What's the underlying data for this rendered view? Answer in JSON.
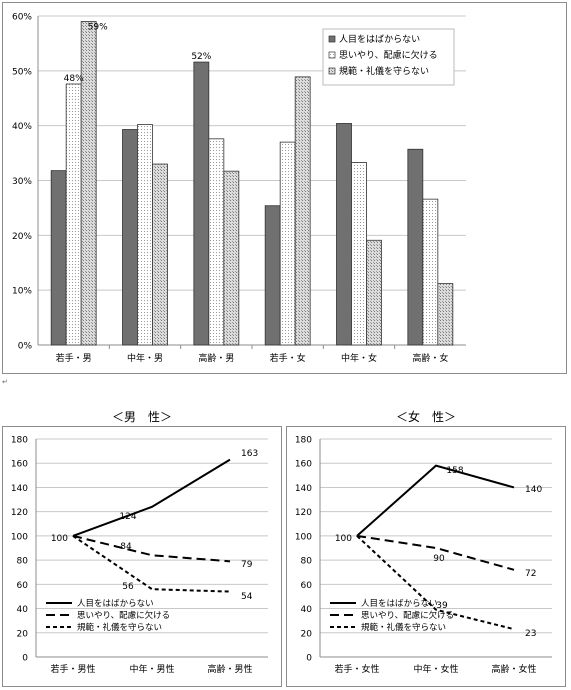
{
  "chart_data": [
    {
      "type": "bar",
      "categories": [
        "若手・男",
        "中年・男",
        "高齢・男",
        "若手・女",
        "中年・女",
        "高齢・女"
      ],
      "series": [
        {
          "name": "人目をはばからない",
          "values": [
            31.8,
            39.3,
            51.6,
            25.4,
            40.4,
            35.7
          ]
        },
        {
          "name": "思いやり、配慮に欠ける",
          "values": [
            47.6,
            40.2,
            37.6,
            37.0,
            33.3,
            26.6
          ]
        },
        {
          "name": "規範・礼儀を守らない",
          "values": [
            59.0,
            33.0,
            31.7,
            48.9,
            19.1,
            11.2
          ]
        }
      ],
      "data_labels": [
        {
          "series": 1,
          "category": 0,
          "text": "48%"
        },
        {
          "series": 2,
          "category": 0,
          "text": "59%"
        },
        {
          "series": 0,
          "category": 2,
          "text": "52%"
        }
      ],
      "yticks": [
        "0%",
        "10%",
        "20%",
        "30%",
        "40%",
        "50%",
        "60%"
      ],
      "ylim": [
        0,
        60
      ],
      "legend_position": "top-right",
      "grid": true
    },
    {
      "type": "line",
      "title": "＜男　性＞",
      "categories": [
        "若手・男性",
        "中年・男性",
        "高齢・男性"
      ],
      "series": [
        {
          "name": "人目をはばからない",
          "values": [
            100,
            124,
            163
          ],
          "style": "solid"
        },
        {
          "name": "思いやり、配慮に欠ける",
          "values": [
            100,
            84,
            79
          ],
          "style": "longdash"
        },
        {
          "name": "規範・礼儀を守らない",
          "values": [
            100,
            56,
            54
          ],
          "style": "shortdash"
        }
      ],
      "point_labels": [
        "100",
        "124",
        "163",
        "84",
        "79",
        "56",
        "54"
      ],
      "yticks": [
        "0",
        "20",
        "40",
        "60",
        "80",
        "100",
        "120",
        "140",
        "160",
        "180"
      ],
      "ylim": [
        0,
        180
      ],
      "legend_position": "bottom-left",
      "grid": true
    },
    {
      "type": "line",
      "title": "＜女　性＞",
      "categories": [
        "若手・女性",
        "中年・女性",
        "高齢・女性"
      ],
      "series": [
        {
          "name": "人目をはばからない",
          "values": [
            100,
            158,
            140
          ],
          "style": "solid"
        },
        {
          "name": "思いやり、配慮に欠ける",
          "values": [
            100,
            90,
            72
          ],
          "style": "longdash"
        },
        {
          "name": "規範・礼儀を守らない",
          "values": [
            100,
            39,
            23
          ],
          "style": "shortdash"
        }
      ],
      "point_labels": [
        "100",
        "158",
        "140",
        "90",
        "72",
        "39",
        "23"
      ],
      "yticks": [
        "0",
        "20",
        "40",
        "60",
        "80",
        "100",
        "120",
        "140",
        "160",
        "180"
      ],
      "ylim": [
        0,
        180
      ],
      "legend_position": "bottom-left",
      "grid": true
    }
  ],
  "colors": {
    "bar_dark": "#707070",
    "bar_dotted_bg": "#ffffff",
    "bar_hatched_bg": "#d8d8d8",
    "grid": "#c8c8c8",
    "frame": "#8c8c8c"
  }
}
